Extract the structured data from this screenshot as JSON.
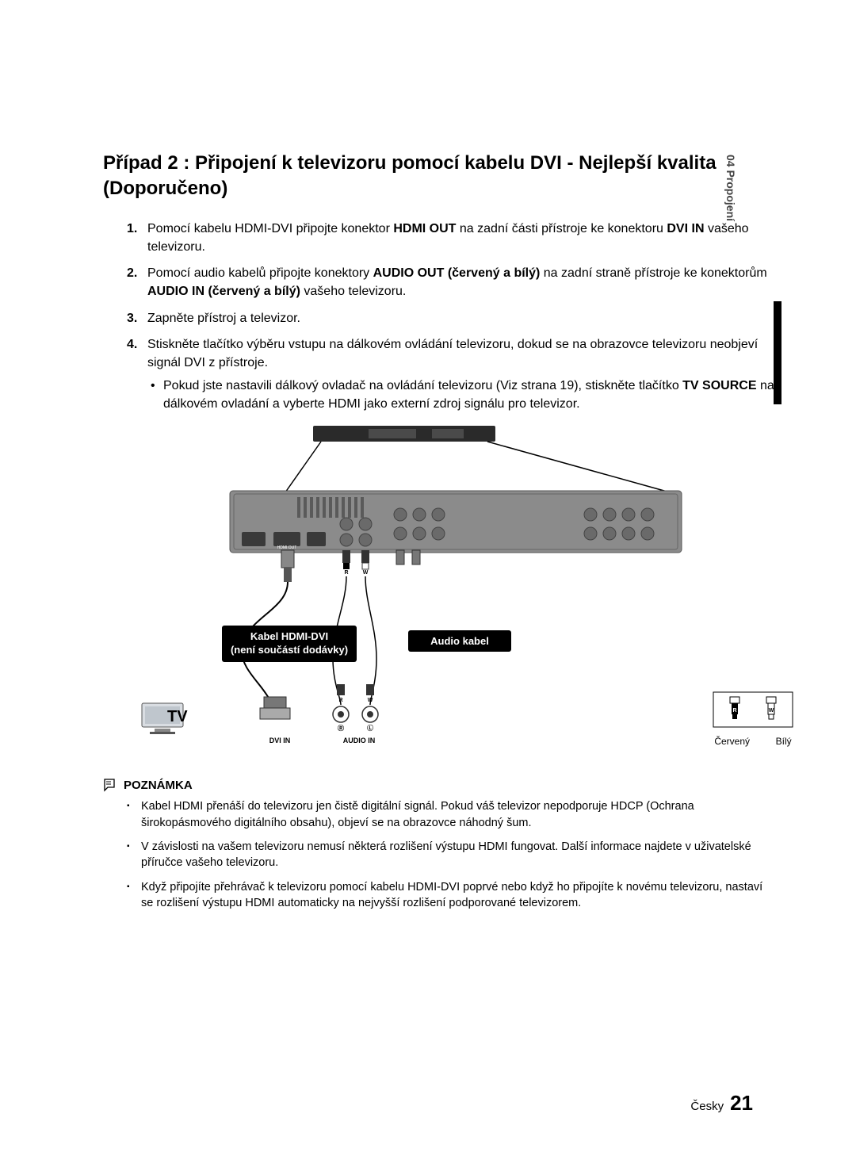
{
  "sideTab": "04  Propojení",
  "title": "Případ 2 : Připojení k televizoru pomocí kabelu DVI - Nejlepší kvalita (Doporučeno)",
  "steps": [
    {
      "num": "1.",
      "parts": [
        {
          "t": "Pomocí kabelu HDMI-DVI připojte konektor "
        },
        {
          "t": "HDMI OUT",
          "b": true
        },
        {
          "t": " na zadní části přístroje ke konektoru "
        },
        {
          "t": "DVI IN",
          "b": true
        },
        {
          "t": " vašeho televizoru."
        }
      ]
    },
    {
      "num": "2.",
      "parts": [
        {
          "t": "Pomocí audio kabelů připojte konektory "
        },
        {
          "t": "AUDIO OUT (červený a bílý)",
          "b": true
        },
        {
          "t": " na zadní straně přístroje ke konektorům "
        },
        {
          "t": "AUDIO IN (červený a bílý)",
          "b": true
        },
        {
          "t": " vašeho televizoru."
        }
      ]
    },
    {
      "num": "3.",
      "parts": [
        {
          "t": "Zapněte přístroj a televizor."
        }
      ]
    },
    {
      "num": "4.",
      "parts": [
        {
          "t": "Stiskněte tlačítko výběru vstupu na dálkovém ovládání televizoru, dokud se na obrazovce televizoru neobjeví signál DVI z přístroje."
        }
      ],
      "sub": [
        {
          "t": "Pokud jste nastavili dálkový ovladač na ovládání televizoru (Viz strana 19), stiskněte tlačítko "
        },
        {
          "t": "TV SOURCE",
          "b": true
        },
        {
          "t": " na dálkovém ovladání a vyberte HDMI jako externí zdroj signálu pro televizor."
        }
      ]
    }
  ],
  "diagram": {
    "hdmiLabel1": "Kabel HDMI-DVI",
    "hdmiLabel2": "(není součástí dodávky)",
    "audioLabel": "Audio kabel",
    "tvLabel": "TV",
    "dviIn": "DVI IN",
    "audioIn": "AUDIO IN",
    "r": "R",
    "w": "W",
    "l": "L",
    "red": "Červený",
    "white": "Bílý",
    "colors": {
      "panel": "#8b8b8b",
      "panelDark": "#6a6a6a",
      "line": "#000000",
      "topDevice": "#2a2a2a"
    }
  },
  "noteHeader": "POZNÁMKA",
  "notes": [
    "Kabel HDMI přenáší do televizoru jen čistě digitální signál. Pokud váš televizor nepodporuje HDCP (Ochrana širokopásmového digitálního obsahu), objeví se na obrazovce náhodný šum.",
    "V závislosti na vašem televizoru nemusí některá rozlišení výstupu HDMI fungovat. Další informace najdete v uživatelské příručce vašeho televizoru.",
    "Když připojíte přehrávač k televizoru pomocí kabelu HDMI-DVI poprvé nebo když ho připojíte k novému televizoru, nastaví se rozlišení výstupu HDMI automaticky na nejvyšší rozlišení podporované televizorem."
  ],
  "footer": {
    "lang": "Česky",
    "page": "21"
  }
}
